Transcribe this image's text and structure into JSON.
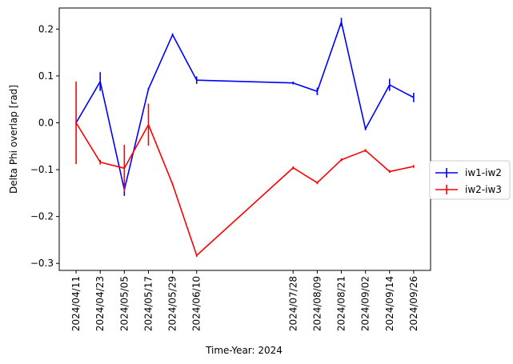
{
  "chart_data": {
    "type": "line",
    "xlabel": "Time-Year: 2024",
    "ylabel": "Delta Phi overlap [rad]",
    "ylim": [
      -0.315,
      0.245
    ],
    "yticks": [
      -0.3,
      -0.2,
      -0.1,
      0.0,
      0.1,
      0.2
    ],
    "ytick_labels": [
      "−0.3",
      "−0.2",
      "−0.1",
      "0.0",
      "0.1",
      "0.2"
    ],
    "x": [
      "2024-04-11",
      "2024-04-23",
      "2024-05-05",
      "2024-05-17",
      "2024-05-29",
      "2024-06-10",
      "2024-07-28",
      "2024-08-09",
      "2024-08-21",
      "2024-09-02",
      "2024-09-14",
      "2024-09-26"
    ],
    "xtick_labels": [
      "2024/04/11",
      "2024/04/23",
      "2024/05/05",
      "2024/05/17",
      "2024/05/29",
      "2024/06/10",
      "2024/07/28",
      "2024/08/09",
      "2024/08/21",
      "2024/09/02",
      "2024/09/14",
      "2024/09/26"
    ],
    "grid": false,
    "legend_position": "right",
    "series": [
      {
        "name": "iw1-iw2",
        "color": "#0000ff",
        "values": [
          0.0,
          0.088,
          -0.143,
          0.072,
          0.188,
          0.091,
          0.085,
          0.067,
          0.215,
          -0.013,
          0.081,
          0.054
        ],
        "errors": [
          0.003,
          0.02,
          0.013,
          0.003,
          0.003,
          0.008,
          0.003,
          0.008,
          0.009,
          0.003,
          0.013,
          0.01
        ]
      },
      {
        "name": "iw2-iw3",
        "color": "#ff0000",
        "values": [
          0.0,
          -0.084,
          -0.097,
          -0.004,
          -0.131,
          -0.283,
          -0.096,
          -0.128,
          -0.079,
          -0.059,
          -0.104,
          -0.093
        ],
        "errors": [
          0.088,
          0.005,
          0.05,
          0.045,
          0.003,
          0.003,
          0.003,
          0.003,
          0.003,
          0.003,
          0.003,
          0.003
        ]
      }
    ]
  }
}
